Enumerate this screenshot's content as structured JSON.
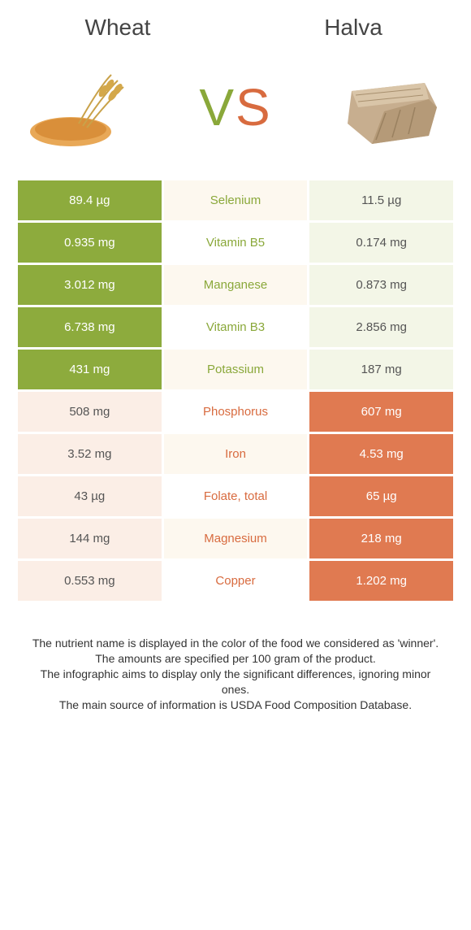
{
  "foods": {
    "left": {
      "name": "Wheat",
      "color": "#8dab3d",
      "textColor": "#ffffff"
    },
    "right": {
      "name": "Halva",
      "color": "#e07a51",
      "textColor": "#ffffff"
    }
  },
  "vs": {
    "left_char": "V",
    "right_char": "S",
    "left_color": "#8aa83a",
    "right_color": "#d86b3f"
  },
  "center": {
    "bg_colors": [
      "#fdf8ef",
      "#ffffff"
    ],
    "label_colors": {
      "left_win": "#8aa83a",
      "right_win": "#d86b3f"
    },
    "font_size": 15
  },
  "left_cell": {
    "bg_default": "#fbeee6",
    "bg_win": "#8dab3d",
    "text_default": "#555",
    "text_win": "#ffffff"
  },
  "right_cell": {
    "bg_default": "#f3f6e7",
    "bg_win": "#e07a51",
    "text_default": "#555",
    "text_win": "#ffffff"
  },
  "rows": [
    {
      "nutrient": "Selenium",
      "left": "89.4 µg",
      "right": "11.5 µg",
      "winner": "left"
    },
    {
      "nutrient": "Vitamin B5",
      "left": "0.935 mg",
      "right": "0.174 mg",
      "winner": "left"
    },
    {
      "nutrient": "Manganese",
      "left": "3.012 mg",
      "right": "0.873 mg",
      "winner": "left"
    },
    {
      "nutrient": "Vitamin B3",
      "left": "6.738 mg",
      "right": "2.856 mg",
      "winner": "left"
    },
    {
      "nutrient": "Potassium",
      "left": "431 mg",
      "right": "187 mg",
      "winner": "left"
    },
    {
      "nutrient": "Phosphorus",
      "left": "508 mg",
      "right": "607 mg",
      "winner": "right"
    },
    {
      "nutrient": "Iron",
      "left": "3.52 mg",
      "right": "4.53 mg",
      "winner": "right"
    },
    {
      "nutrient": "Folate, total",
      "left": "43 µg",
      "right": "65 µg",
      "winner": "right"
    },
    {
      "nutrient": "Magnesium",
      "left": "144 mg",
      "right": "218 mg",
      "winner": "right"
    },
    {
      "nutrient": "Copper",
      "left": "0.553 mg",
      "right": "1.202 mg",
      "winner": "right"
    }
  ],
  "footnotes": [
    "The nutrient name is displayed in the color of the food we considered as 'winner'.",
    "The amounts are specified per 100 gram of the product.",
    "The infographic aims to display only the significant differences, ignoring minor ones.",
    "The main source of information is USDA Food Composition Database."
  ]
}
